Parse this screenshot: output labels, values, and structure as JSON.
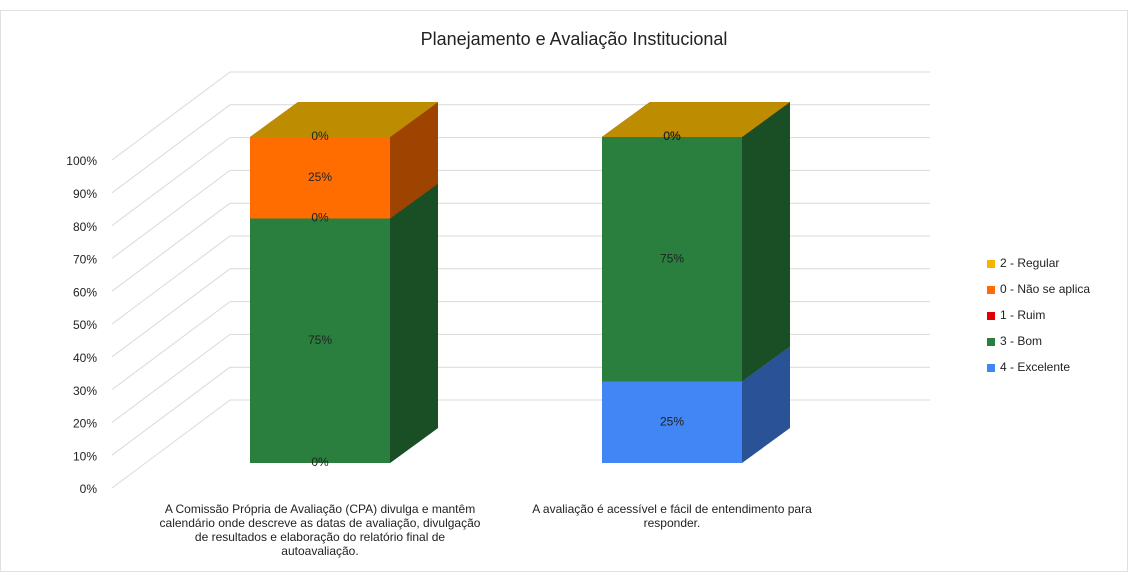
{
  "chart_data": {
    "type": "bar3d_stacked",
    "title": "Planejamento  e Avaliação  Institucional",
    "categories": [
      "A Comissão Própria de Avaliação (CPA) divulga e mantêm calendário onde descreve as datas de avaliação, divulgação de resultados e elaboração do relatório final de autoavaliação.",
      "A avaliação é acessível e fácil de entendimento para responder."
    ],
    "series": [
      {
        "name": "4 - Excelente",
        "color": "#4285f4",
        "values": [
          0,
          25
        ],
        "value_labels": [
          "0%",
          "25%"
        ]
      },
      {
        "name": "3 - Bom",
        "color": "#2a7f3e",
        "values": [
          75,
          75
        ],
        "value_labels": [
          "75%",
          "75%"
        ]
      },
      {
        "name": "1 - Ruim",
        "color": "#e00000",
        "values": [
          0,
          0
        ],
        "value_labels": [
          "0%",
          "0%"
        ]
      },
      {
        "name": "0 - Não se aplica",
        "color": "#ff6d00",
        "values": [
          25,
          0
        ],
        "value_labels": [
          "25%",
          "0%"
        ]
      },
      {
        "name": "2 - Regular",
        "color": "#f4b400",
        "values": [
          0,
          0
        ],
        "value_labels": [
          "0%",
          "0%"
        ]
      }
    ],
    "ylim": [
      0,
      100
    ],
    "yticks": [
      {
        "value": 0,
        "label": "0%"
      },
      {
        "value": 10,
        "label": "10%"
      },
      {
        "value": 20,
        "label": "20%"
      },
      {
        "value": 30,
        "label": "30%"
      },
      {
        "value": 40,
        "label": "40%"
      },
      {
        "value": 50,
        "label": "50%"
      },
      {
        "value": 60,
        "label": "60%"
      },
      {
        "value": 70,
        "label": "70%"
      },
      {
        "value": 80,
        "label": "80%"
      },
      {
        "value": 90,
        "label": "90%"
      },
      {
        "value": 100,
        "label": "100%"
      }
    ],
    "grid": true,
    "legend": "right"
  }
}
